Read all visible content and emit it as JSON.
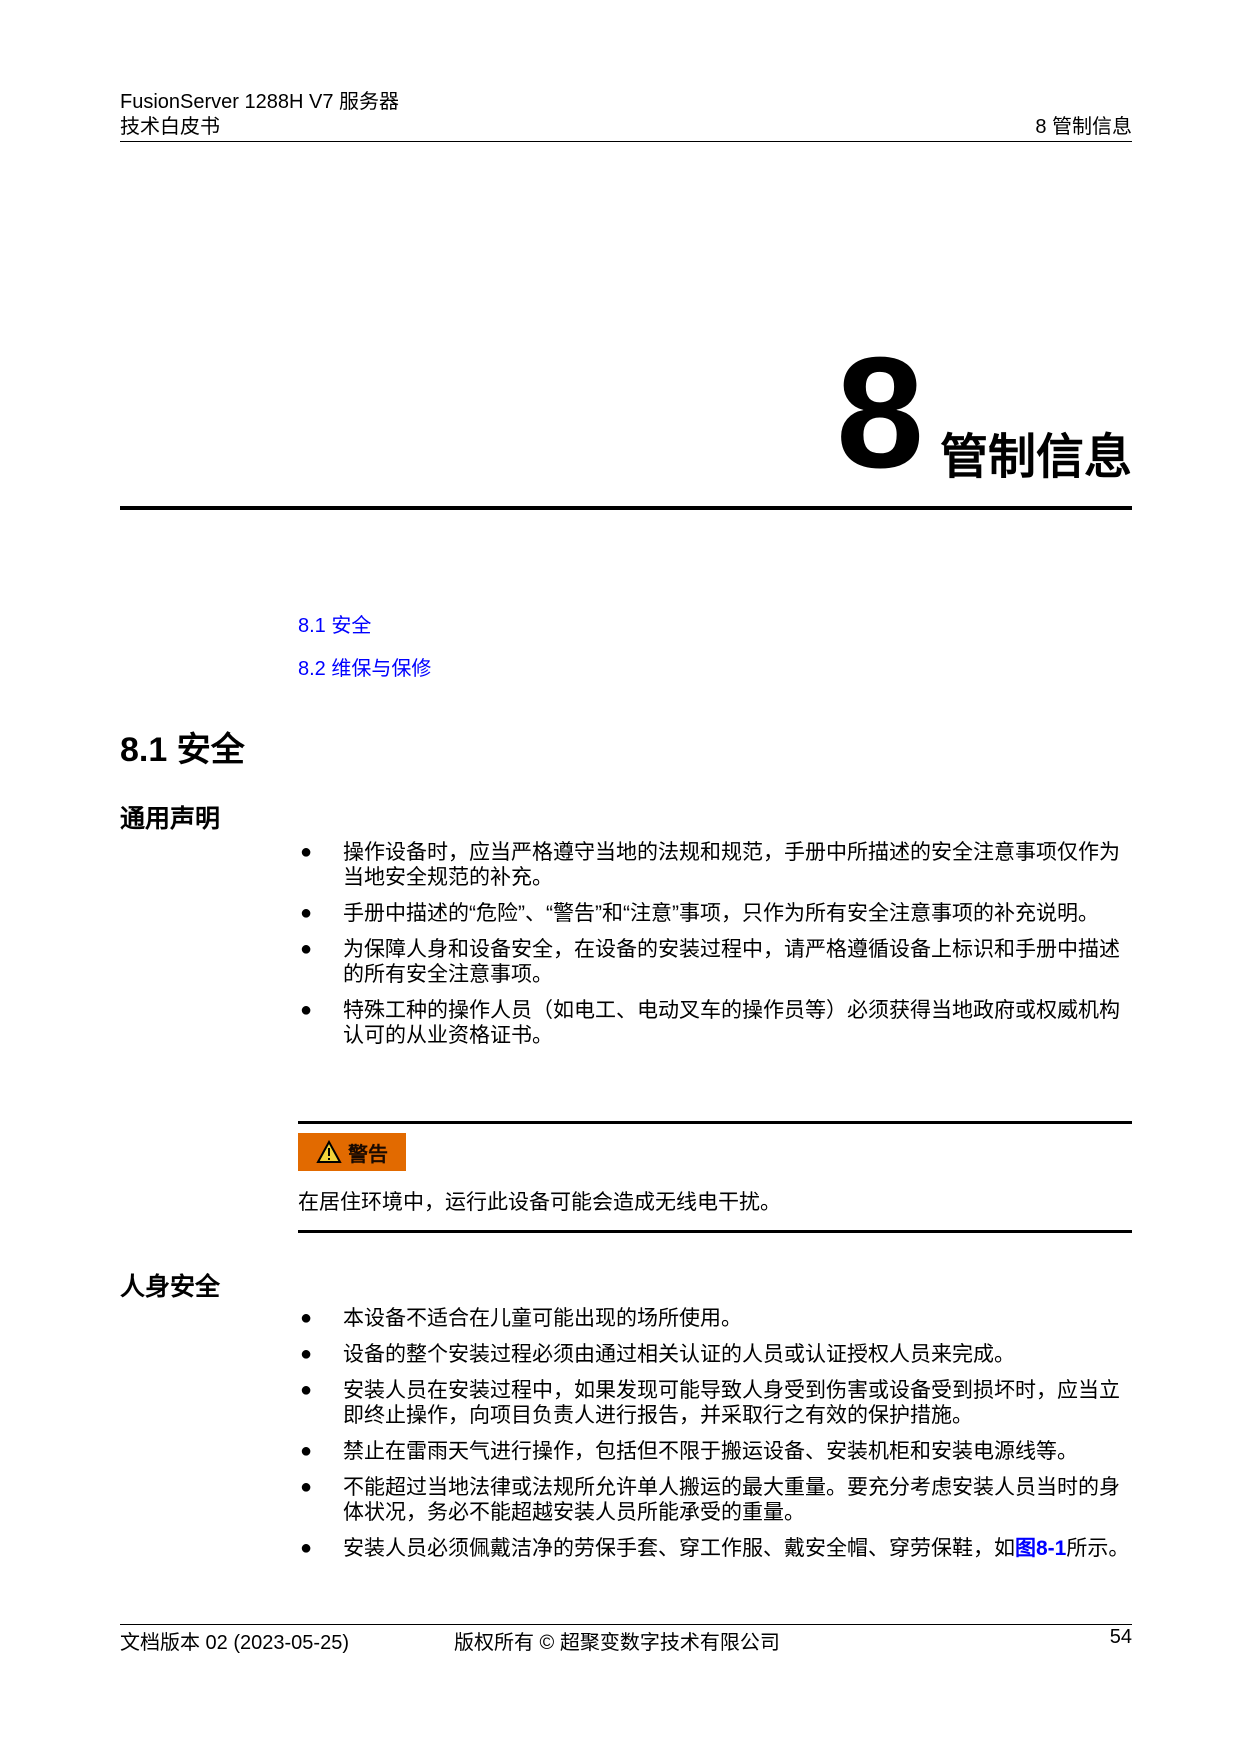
{
  "header": {
    "product": "FusionServer 1288H V7 服务器",
    "doc_type": "技术白皮书",
    "chapter": "8 管制信息"
  },
  "chapter": {
    "number": "8",
    "title": "管制信息"
  },
  "toc": [
    {
      "label": "8.1 安全"
    },
    {
      "label": "8.2 维保与保修"
    }
  ],
  "section": {
    "title": "8.1 安全"
  },
  "general": {
    "title": "通用声明",
    "items": [
      "操作设备时，应当严格遵守当地的法规和规范，手册中所描述的安全注意事项仅作为当地安全规范的补充。",
      "手册中描述的“危险”、“警告”和“注意”事项，只作为所有安全注意事项的补充说明。",
      "为保障人身和设备安全，在设备的安装过程中，请严格遵循设备上标识和手册中描述的所有安全注意事项。",
      "特殊工种的操作人员（如电工、电动叉车的操作员等）必须获得当地政府或权威机构认可的从业资格证书。"
    ]
  },
  "warning": {
    "label": "警告",
    "text": "在居住环境中，运行此设备可能会造成无线电干扰。",
    "color": "#e26a00"
  },
  "personal": {
    "title": "人身安全",
    "items": [
      "本设备不适合在儿童可能出现的场所使用。",
      "设备的整个安装过程必须由通过相关认证的人员或认证授权人员来完成。",
      "安装人员在安装过程中，如果发现可能导致人身受到伤害或设备受到损坏时，应当立即终止操作，向项目负责人进行报告，并采取行之有效的保护措施。",
      "禁止在雷雨天气进行操作，包括但不限于搬运设备、安装机柜和安装电源线等。",
      "不能超过当地法律或法规所允许单人搬运的最大重量。要充分考虑安装人员当时的身体状况，务必不能超越安装人员所能承受的重量。"
    ],
    "last_item": {
      "before": "安装人员必须佩戴洁净的劳保手套、穿工作服、戴安全帽、穿劳保鞋，如",
      "link": "图8-1",
      "after": "所示。"
    }
  },
  "footer": {
    "version": "文档版本 02 (2023-05-25)",
    "copyright": "版权所有 © 超聚变数字技术有限公司",
    "page": "54"
  },
  "colors": {
    "link": "#0000ff"
  }
}
